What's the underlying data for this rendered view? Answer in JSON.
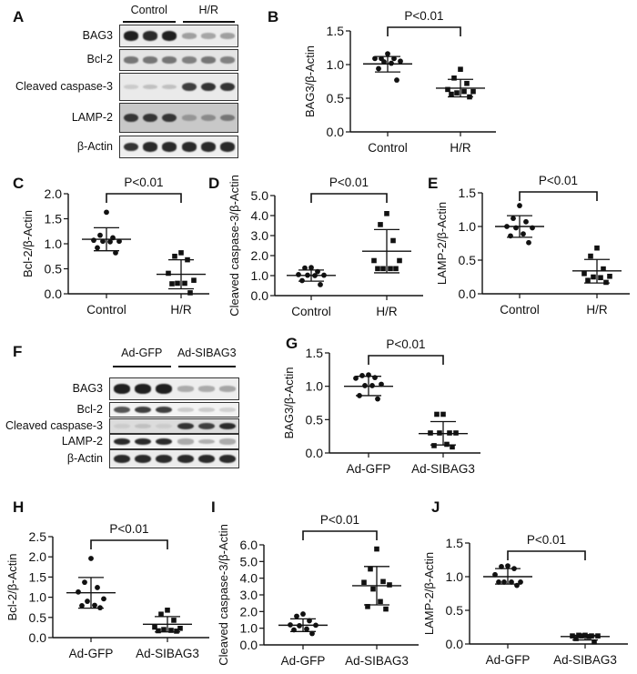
{
  "panel_letters": {
    "A": "A",
    "B": "B",
    "C": "C",
    "D": "D",
    "E": "E",
    "F": "F",
    "G": "G",
    "H": "H",
    "I": "I",
    "J": "J"
  },
  "blots": [
    {
      "panel": "A",
      "groups": [
        {
          "label": "Control"
        },
        {
          "label": "H/R"
        }
      ],
      "rows": [
        {
          "label": "BAG3",
          "intensity": [
            0.95,
            0.9,
            0.95,
            0.35,
            0.32,
            0.35
          ]
        },
        {
          "label": "Bcl-2",
          "intensity": [
            0.55,
            0.55,
            0.55,
            0.5,
            0.55,
            0.5
          ]
        },
        {
          "label": "Cleaved caspase-3",
          "intensity": [
            0.15,
            0.2,
            0.2,
            0.8,
            0.85,
            0.85
          ]
        },
        {
          "label": "LAMP-2",
          "intensity": [
            0.85,
            0.85,
            0.85,
            0.4,
            0.45,
            0.55
          ]
        },
        {
          "label": "β-Actin",
          "intensity": [
            0.85,
            0.9,
            0.9,
            0.9,
            0.9,
            0.9
          ]
        }
      ]
    },
    {
      "panel": "F",
      "groups": [
        {
          "label": "Ad-GFP"
        },
        {
          "label": "Ad-SIBAG3"
        }
      ],
      "rows": [
        {
          "label": "BAG3",
          "intensity": [
            0.95,
            0.95,
            0.95,
            0.3,
            0.3,
            0.32
          ]
        },
        {
          "label": "Bcl-2",
          "intensity": [
            0.7,
            0.8,
            0.8,
            0.15,
            0.15,
            0.12
          ]
        },
        {
          "label": "Cleaved caspase-3",
          "intensity": [
            0.15,
            0.2,
            0.15,
            0.85,
            0.8,
            0.9
          ]
        },
        {
          "label": "LAMP-2",
          "intensity": [
            0.9,
            0.9,
            0.9,
            0.3,
            0.28,
            0.3
          ]
        },
        {
          "label": "β-Actin",
          "intensity": [
            0.9,
            0.9,
            0.9,
            0.9,
            0.9,
            0.9
          ]
        }
      ]
    }
  ],
  "chart_data": [
    {
      "panel": "B",
      "type": "scatter",
      "ylabel": "BAG3/β-Actin",
      "ylim": [
        0,
        1.5
      ],
      "yticks": [
        "0.0",
        "0.5",
        "1.0",
        "1.5"
      ],
      "categories": [
        "Control",
        "H/R"
      ],
      "annotation": "P<0.01",
      "series": [
        {
          "name": "Control",
          "marker": "circle",
          "values": [
            1.16,
            1.09,
            1.09,
            1.09,
            1.05,
            1.04,
            1.02,
            0.94,
            0.77
          ],
          "mean": 1.01,
          "sd_upper": 1.12,
          "sd_lower": 0.89
        },
        {
          "name": "H/R",
          "marker": "square",
          "values": [
            0.93,
            0.8,
            0.72,
            0.63,
            0.6,
            0.58,
            0.6,
            0.56,
            0.52
          ],
          "mean": 0.65,
          "sd_upper": 0.78,
          "sd_lower": 0.52
        }
      ]
    },
    {
      "panel": "C",
      "type": "scatter",
      "ylabel": "Bcl-2/β-Actin",
      "ylim": [
        0,
        2.0
      ],
      "yticks": [
        "0.0",
        "0.5",
        "1.0",
        "1.5",
        "2.0"
      ],
      "categories": [
        "Control",
        "H/R"
      ],
      "annotation": "P<0.01",
      "series": [
        {
          "name": "Control",
          "marker": "circle",
          "values": [
            1.63,
            1.17,
            1.12,
            1.07,
            1.05,
            1.05,
            1.04,
            0.92,
            0.82
          ],
          "mean": 1.09,
          "sd_upper": 1.32,
          "sd_lower": 0.86
        },
        {
          "name": "H/R",
          "marker": "square",
          "values": [
            0.82,
            0.75,
            0.68,
            0.41,
            0.27,
            0.21,
            0.21,
            0.2,
            0.02
          ],
          "mean": 0.39,
          "sd_upper": 0.68,
          "sd_lower": 0.1
        }
      ]
    },
    {
      "panel": "D",
      "type": "scatter",
      "ylabel": "Cleaved caspase-3/β-Actin",
      "ylim": [
        0,
        5.0
      ],
      "yticks": [
        "0.0",
        "1.0",
        "2.0",
        "3.0",
        "4.0",
        "5.0"
      ],
      "categories": [
        "Control",
        "H/R"
      ],
      "annotation": "P<0.01",
      "series": [
        {
          "name": "Control",
          "marker": "circle",
          "values": [
            1.4,
            1.38,
            1.2,
            1.05,
            1.02,
            1.02,
            1.0,
            0.75,
            0.55
          ],
          "mean": 1.01,
          "sd_upper": 1.28,
          "sd_lower": 0.72
        },
        {
          "name": "H/R",
          "marker": "square",
          "values": [
            4.1,
            3.55,
            2.75,
            1.75,
            1.75,
            1.35,
            1.35,
            1.35,
            1.35
          ],
          "mean": 2.22,
          "sd_upper": 3.3,
          "sd_lower": 1.14
        }
      ]
    },
    {
      "panel": "E",
      "type": "scatter",
      "ylabel": "LAMP-2/β-Actin",
      "ylim": [
        0,
        1.5
      ],
      "yticks": [
        "0.0",
        "0.5",
        "1.0",
        "1.5"
      ],
      "categories": [
        "Control",
        "H/R"
      ],
      "annotation": "P<0.01",
      "series": [
        {
          "name": "Control",
          "marker": "circle",
          "values": [
            1.31,
            1.12,
            1.07,
            1.0,
            0.98,
            0.98,
            0.89,
            0.86,
            0.76
          ],
          "mean": 1.0,
          "sd_upper": 1.16,
          "sd_lower": 0.84
        },
        {
          "name": "H/R",
          "marker": "square",
          "values": [
            0.68,
            0.56,
            0.37,
            0.3,
            0.26,
            0.25,
            0.24,
            0.2,
            0.17
          ],
          "mean": 0.34,
          "sd_upper": 0.51,
          "sd_lower": 0.16
        }
      ]
    },
    {
      "panel": "G",
      "type": "scatter",
      "ylabel": "BAG3/β-Actin",
      "ylim": [
        0,
        1.5
      ],
      "yticks": [
        "0.0",
        "0.5",
        "1.0",
        "1.5"
      ],
      "categories": [
        "Ad-GFP",
        "Ad-SIBAG3"
      ],
      "annotation": "P<0.01",
      "series": [
        {
          "name": "Ad-GFP",
          "marker": "circle",
          "values": [
            1.17,
            1.16,
            1.13,
            1.12,
            1.03,
            1.01,
            1.01,
            0.86,
            0.81
          ],
          "mean": 1.0,
          "sd_upper": 1.15,
          "sd_lower": 0.86
        },
        {
          "name": "Ad-SIBAG3",
          "marker": "square",
          "values": [
            0.58,
            0.58,
            0.3,
            0.3,
            0.3,
            0.3,
            0.13,
            0.11,
            0.09
          ],
          "mean": 0.29,
          "sd_upper": 0.47,
          "sd_lower": 0.12
        }
      ]
    },
    {
      "panel": "H",
      "type": "scatter",
      "ylabel": "Bcl-2/β-Actin",
      "ylim": [
        0,
        2.5
      ],
      "yticks": [
        "0.0",
        "0.5",
        "1.0",
        "1.5",
        "2.0",
        "2.5"
      ],
      "categories": [
        "Ad-GFP",
        "Ad-SIBAG3"
      ],
      "annotation": "P<0.01",
      "series": [
        {
          "name": "Ad-GFP",
          "marker": "circle",
          "values": [
            1.96,
            1.37,
            1.24,
            1.13,
            0.96,
            0.9,
            0.8,
            0.79,
            0.74
          ],
          "mean": 1.11,
          "sd_upper": 1.49,
          "sd_lower": 0.73
        },
        {
          "name": "Ad-SIBAG3",
          "marker": "square",
          "values": [
            0.68,
            0.58,
            0.43,
            0.26,
            0.23,
            0.2,
            0.18,
            0.17,
            0.16
          ],
          "mean": 0.33,
          "sd_upper": 0.52,
          "sd_lower": 0.14
        }
      ]
    },
    {
      "panel": "I",
      "type": "scatter",
      "ylabel": "Cleaved caspase-3/β-Actin",
      "ylim": [
        0,
        6.0
      ],
      "yticks": [
        "0.0",
        "1.0",
        "2.0",
        "3.0",
        "4.0",
        "5.0",
        "6.0"
      ],
      "categories": [
        "Ad-GFP",
        "Ad-SIBAG3"
      ],
      "annotation": "P<0.01",
      "series": [
        {
          "name": "Ad-GFP",
          "marker": "circle",
          "values": [
            1.85,
            1.72,
            1.45,
            1.2,
            1.18,
            1.15,
            0.95,
            0.9,
            0.68
          ],
          "mean": 1.18,
          "sd_upper": 1.56,
          "sd_lower": 0.8
        },
        {
          "name": "Ad-SIBAG3",
          "marker": "square",
          "values": [
            5.75,
            4.55,
            3.8,
            3.75,
            3.6,
            3.35,
            2.6,
            2.3,
            2.15
          ],
          "mean": 3.55,
          "sd_upper": 4.7,
          "sd_lower": 2.4
        }
      ]
    },
    {
      "panel": "J",
      "type": "scatter",
      "ylabel": "LAMP-2/β-Actin",
      "ylim": [
        0,
        1.5
      ],
      "yticks": [
        "0.0",
        "0.5",
        "1.0",
        "1.5"
      ],
      "categories": [
        "Ad-GFP",
        "Ad-SIBAG3"
      ],
      "annotation": "P<0.01",
      "series": [
        {
          "name": "Ad-GFP",
          "marker": "circle",
          "values": [
            1.16,
            1.15,
            1.12,
            1.03,
            0.92,
            0.92,
            0.92,
            0.92,
            0.87
          ],
          "mean": 1.0,
          "sd_upper": 1.12,
          "sd_lower": 0.89
        },
        {
          "name": "Ad-SIBAG3",
          "marker": "square",
          "values": [
            0.13,
            0.13,
            0.12,
            0.12,
            0.12,
            0.12,
            0.11,
            0.08,
            0.03
          ],
          "mean": 0.11,
          "sd_upper": 0.13,
          "sd_lower": 0.06
        }
      ]
    }
  ]
}
